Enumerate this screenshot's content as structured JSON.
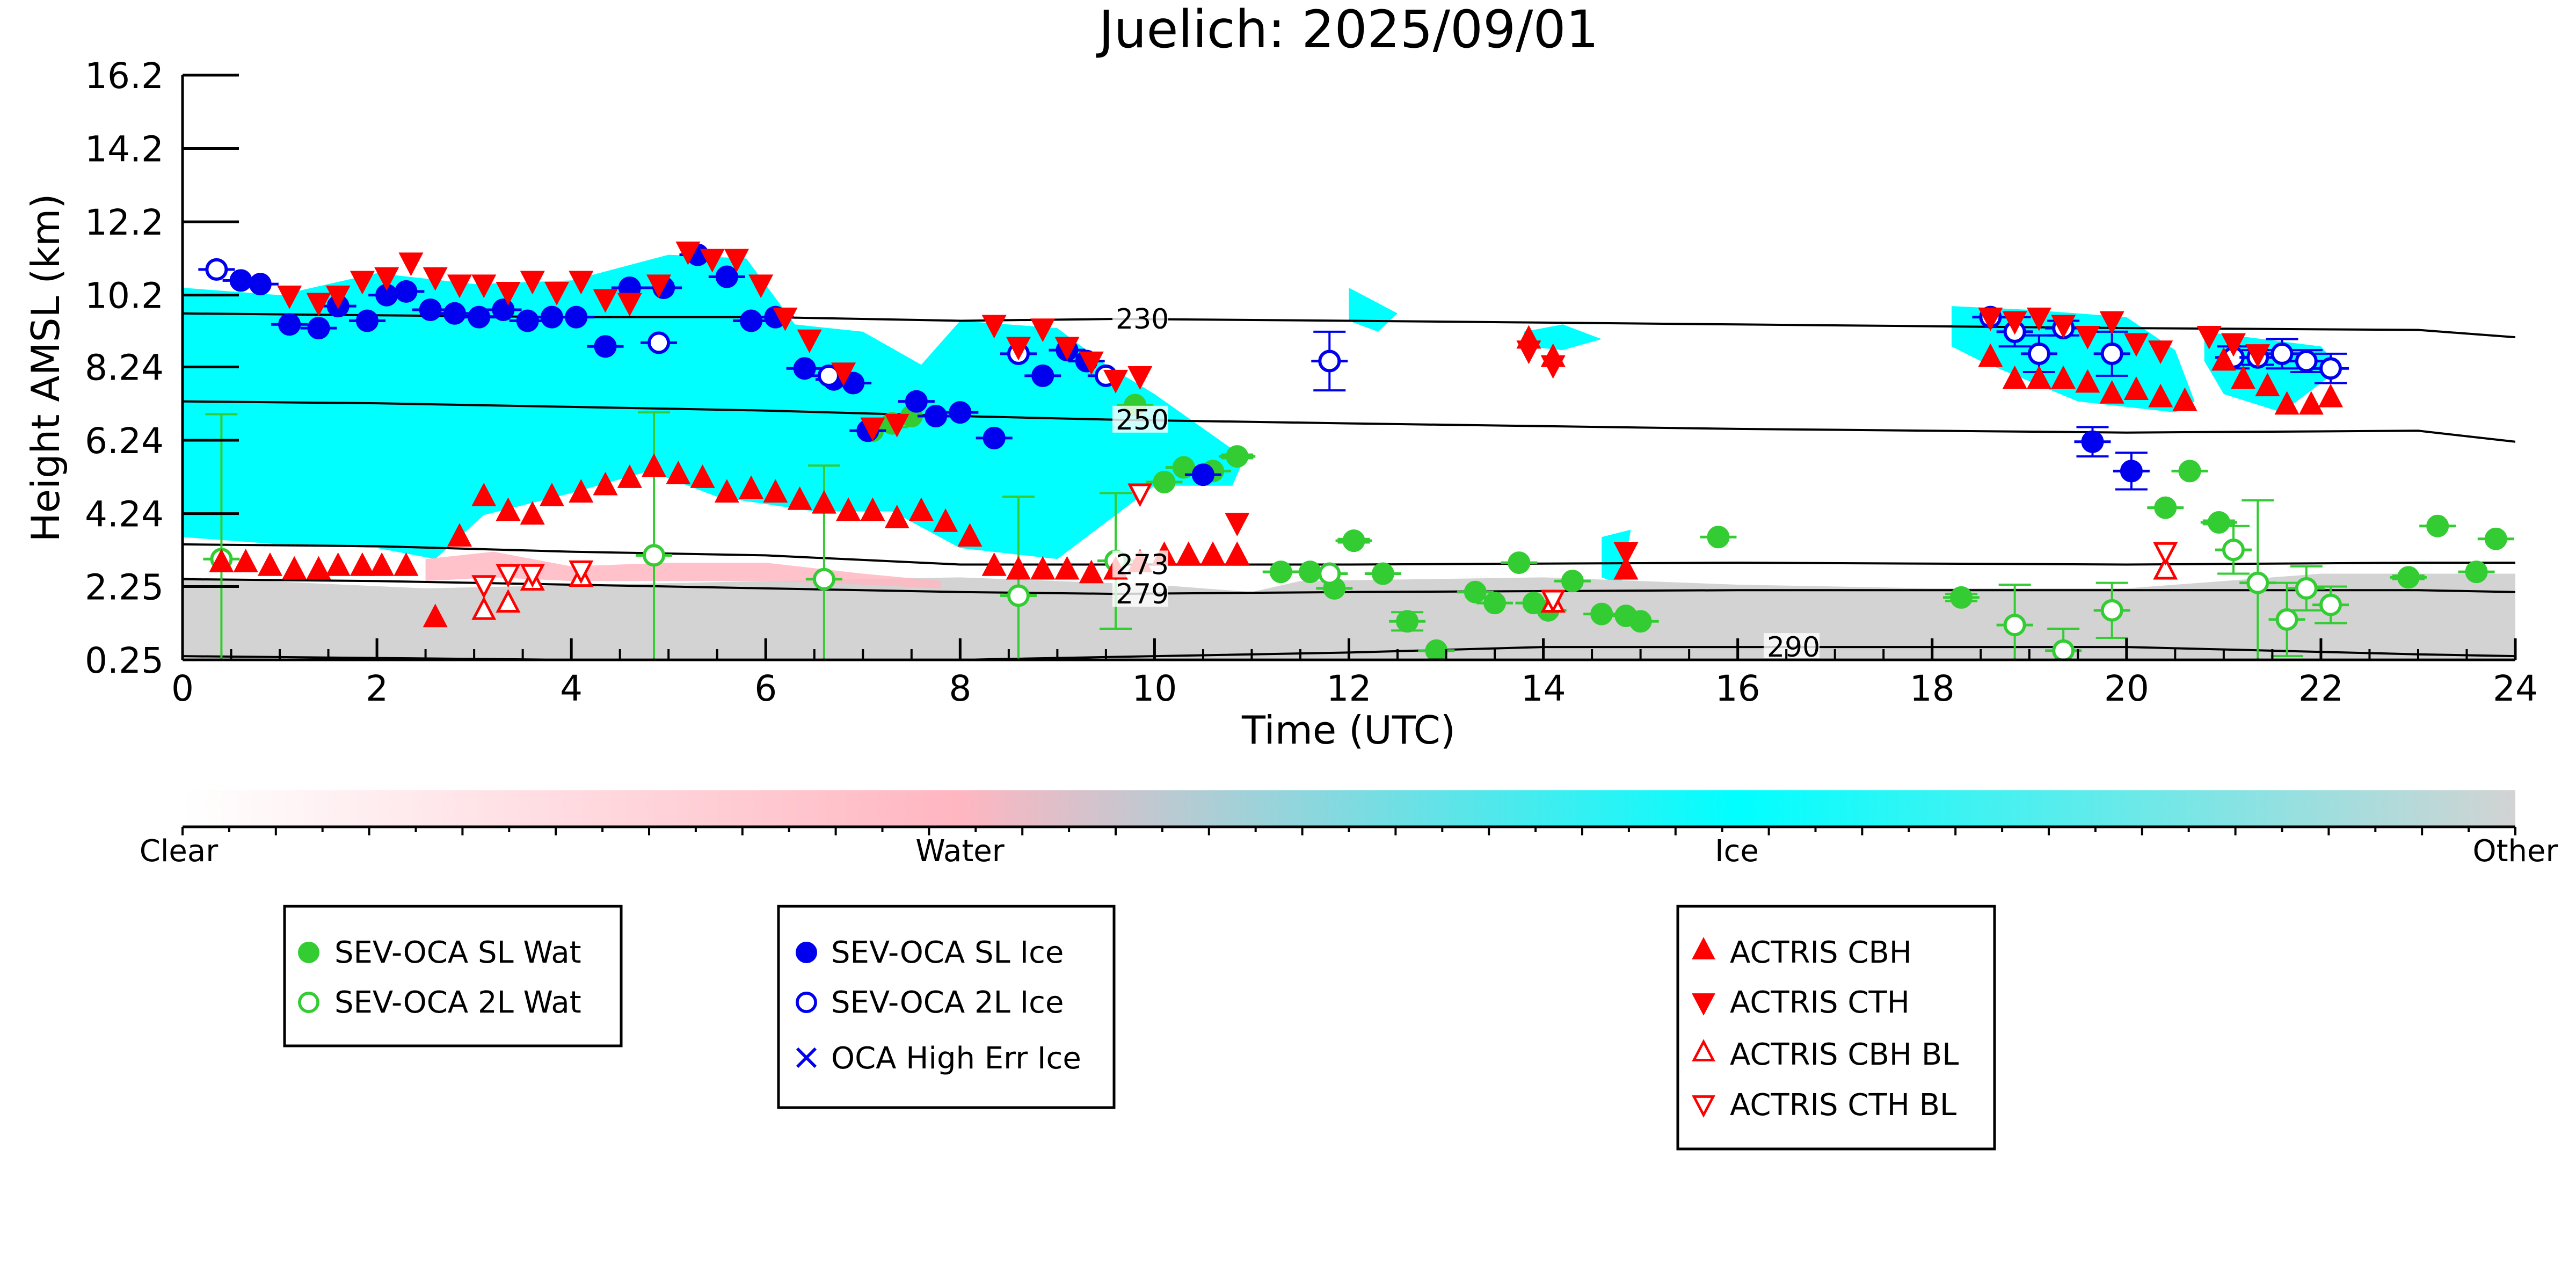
{
  "chart_data": {
    "type": "scatter",
    "title": "Juelich: 2025/09/01",
    "xlabel": "Time (UTC)",
    "ylabel": "Height AMSL (km)",
    "xlim": [
      0,
      24
    ],
    "ylim": [
      0.25,
      16.2
    ],
    "x_ticks": [
      0,
      2,
      4,
      6,
      8,
      10,
      12,
      14,
      16,
      18,
      20,
      22,
      24
    ],
    "y_ticks": [
      0.25,
      2.25,
      4.24,
      6.24,
      8.24,
      10.2,
      12.2,
      14.2,
      16.2
    ],
    "y_tick_labels": [
      "0.25",
      "2.25",
      "4.24",
      "6.24",
      "8.24",
      "10.2",
      "12.2",
      "14.2",
      "16.2"
    ],
    "grid": false,
    "colorbar": {
      "labels": [
        "Clear",
        "Water",
        "Ice",
        "Other"
      ],
      "colors": [
        "#ffffff",
        "#ffb6c1",
        "#00ffff",
        "#d3d3d3"
      ]
    },
    "classification_regions": [
      {
        "class": "Ice",
        "color": "#00ffff",
        "top": [
          [
            0,
            10.4
          ],
          [
            1,
            10.2
          ],
          [
            2,
            10.8
          ],
          [
            3,
            10.5
          ],
          [
            4,
            10.6
          ],
          [
            5,
            11.3
          ],
          [
            5.8,
            11.2
          ],
          [
            6.3,
            9.4
          ],
          [
            7,
            9.2
          ],
          [
            7.6,
            8.3
          ],
          [
            8,
            9.5
          ],
          [
            9,
            9.3
          ],
          [
            9.5,
            8.3
          ],
          [
            10,
            7.5
          ],
          [
            10.8,
            6.0
          ],
          [
            10.9,
            5.6
          ]
        ],
        "bottom": [
          [
            0,
            3.6
          ],
          [
            1,
            3.4
          ],
          [
            2,
            3.3
          ],
          [
            2.6,
            3.0
          ],
          [
            3.1,
            4.2
          ],
          [
            4,
            4.8
          ],
          [
            4.8,
            5.4
          ],
          [
            5.5,
            4.7
          ],
          [
            6.5,
            4.3
          ],
          [
            7.3,
            4.3
          ],
          [
            8,
            3.3
          ],
          [
            9,
            3.0
          ],
          [
            9.5,
            4.0
          ],
          [
            10,
            5.0
          ],
          [
            10.8,
            5.0
          ],
          [
            10.9,
            5.6
          ]
        ]
      },
      {
        "class": "Ice",
        "color": "#00ffff",
        "top": [
          [
            18.2,
            9.9
          ],
          [
            19,
            9.8
          ],
          [
            20,
            9.6
          ],
          [
            20.5,
            8.7
          ],
          [
            20.7,
            7.3
          ],
          [
            20.5,
            7.0
          ],
          [
            19.5,
            7.3
          ],
          [
            18.5,
            8.4
          ],
          [
            18.2,
            8.8
          ]
        ],
        "bottom": []
      },
      {
        "class": "Ice",
        "color": "#00ffff",
        "top": [
          [
            20.8,
            9.2
          ],
          [
            22,
            8.8
          ],
          [
            22.2,
            8.2
          ],
          [
            21.6,
            7.0
          ],
          [
            21,
            7.5
          ],
          [
            20.8,
            8.4
          ]
        ],
        "bottom": []
      },
      {
        "class": "Ice",
        "color": "#00ffff",
        "top": [
          [
            12,
            10.4
          ],
          [
            12.5,
            9.7
          ],
          [
            12.3,
            9.2
          ],
          [
            12.0,
            9.5
          ]
        ],
        "bottom": []
      },
      {
        "class": "Ice",
        "color": "#00ffff",
        "top": [
          [
            13.8,
            9.2
          ],
          [
            14.2,
            9.4
          ],
          [
            14.6,
            9.0
          ],
          [
            14.2,
            8.7
          ],
          [
            13.8,
            8.8
          ]
        ],
        "bottom": []
      },
      {
        "class": "Ice",
        "color": "#00ffff",
        "top": [
          [
            14.6,
            3.6
          ],
          [
            14.9,
            3.8
          ],
          [
            14.8,
            2.3
          ],
          [
            14.6,
            2.5
          ]
        ],
        "bottom": []
      },
      {
        "class": "Other",
        "color": "#d3d3d3",
        "top": [
          [
            0,
            2.5
          ],
          [
            2.5,
            2.2
          ],
          [
            6,
            2.4
          ],
          [
            8,
            2.5
          ],
          [
            10,
            2.3
          ],
          [
            11,
            2.1
          ],
          [
            11.5,
            2.4
          ],
          [
            14,
            2.5
          ],
          [
            16,
            2.3
          ],
          [
            18,
            2.2
          ],
          [
            20,
            2.2
          ],
          [
            22,
            2.6
          ],
          [
            24,
            2.6
          ]
        ],
        "bottom": [
          [
            0,
            0.3
          ],
          [
            24,
            0.3
          ]
        ]
      },
      {
        "class": "Water",
        "color": "#ffb6c1",
        "top": [
          [
            2.5,
            3.0
          ],
          [
            3.2,
            3.2
          ],
          [
            4,
            2.8
          ],
          [
            5,
            2.9
          ],
          [
            6,
            2.9
          ],
          [
            7,
            2.6
          ],
          [
            7.8,
            2.4
          ]
        ],
        "bottom": [
          [
            2.5,
            2.4
          ],
          [
            3.2,
            2.5
          ],
          [
            4,
            2.4
          ],
          [
            5,
            2.4
          ],
          [
            6,
            2.4
          ],
          [
            7,
            2.3
          ],
          [
            7.8,
            2.2
          ]
        ]
      }
    ],
    "isotherms": [
      {
        "label": "230",
        "label_x": 9.6,
        "x": [
          0,
          2,
          4,
          6,
          8,
          9.6,
          12,
          16,
          20,
          23,
          24
        ],
        "y": [
          9.7,
          9.65,
          9.6,
          9.6,
          9.5,
          9.55,
          9.5,
          9.4,
          9.3,
          9.25,
          9.05
        ]
      },
      {
        "label": "250",
        "label_x": 9.6,
        "x": [
          0,
          2,
          4,
          6,
          8,
          9.6,
          12,
          16,
          20,
          23,
          24
        ],
        "y": [
          7.3,
          7.25,
          7.15,
          7.05,
          6.9,
          6.8,
          6.7,
          6.55,
          6.45,
          6.5,
          6.2
        ]
      },
      {
        "label": "273",
        "label_x": 9.6,
        "x": [
          0,
          2,
          4,
          6,
          8,
          9.6,
          12,
          16,
          20,
          23,
          24
        ],
        "y": [
          3.4,
          3.35,
          3.2,
          3.1,
          2.85,
          2.85,
          2.85,
          2.9,
          2.85,
          2.9,
          2.9
        ]
      },
      {
        "label": "279",
        "label_x": 9.6,
        "x": [
          0,
          2,
          4,
          6,
          8,
          9.6,
          12,
          16,
          20,
          23,
          24
        ],
        "y": [
          2.45,
          2.4,
          2.3,
          2.2,
          2.1,
          2.05,
          2.1,
          2.15,
          2.15,
          2.15,
          2.1
        ]
      },
      {
        "label": "290",
        "label_x": 16.3,
        "x": [
          0,
          2,
          4,
          6,
          8,
          10,
          12,
          14,
          16.3,
          20,
          23,
          24
        ],
        "y": [
          0.35,
          0.3,
          0.25,
          0.25,
          0.25,
          0.35,
          0.45,
          0.6,
          0.6,
          0.6,
          0.4,
          0.35
        ]
      }
    ],
    "series": [
      {
        "name": "SEV-OCA SL Wat",
        "marker": "circle",
        "filled": true,
        "color": "#33cc33",
        "x": [
          7.1,
          7.3,
          7.5,
          9.8,
          10.1,
          10.3,
          10.6,
          10.85,
          11.3,
          11.6,
          11.85,
          12.05,
          12.35,
          12.6,
          12.9,
          13.3,
          13.5,
          13.75,
          13.9,
          14.05,
          14.3,
          14.6,
          14.85,
          15.0,
          15.8,
          18.3,
          20.4,
          20.65,
          20.95,
          22.9,
          23.2,
          23.6,
          23.8
        ],
        "y": [
          6.5,
          6.7,
          6.9,
          7.2,
          5.1,
          5.5,
          5.4,
          5.8,
          2.65,
          2.65,
          2.2,
          3.5,
          2.6,
          1.3,
          0.5,
          2.1,
          1.8,
          2.9,
          1.8,
          1.6,
          2.4,
          1.5,
          1.45,
          1.3,
          3.6,
          1.95,
          4.4,
          5.4,
          4.0,
          2.5,
          3.9,
          2.65,
          3.55
        ],
        "err": [
          0,
          0.1,
          0,
          0,
          0,
          0,
          0,
          0.05,
          0,
          0,
          0,
          0.05,
          0,
          0.25,
          0,
          0,
          0,
          0,
          0,
          0,
          0,
          0,
          0,
          0,
          0,
          0.1,
          0,
          0,
          0.05,
          0.05,
          0,
          0,
          0
        ]
      },
      {
        "name": "SEV-OCA 2L Wat",
        "marker": "circle",
        "filled": false,
        "color": "#33cc33",
        "x": [
          0.4,
          4.85,
          6.6,
          8.6,
          9.6,
          11.8,
          18.85,
          19.35,
          19.85,
          21.1,
          21.35,
          21.65,
          21.85,
          22.1
        ],
        "y": [
          3.0,
          3.1,
          2.45,
          2.0,
          2.95,
          2.6,
          1.2,
          0.5,
          1.6,
          3.25,
          2.35,
          1.35,
          2.2,
          1.75
        ],
        "err": [
          3.95,
          3.9,
          3.1,
          2.7,
          1.85,
          0,
          1.1,
          0.6,
          0.75,
          0.65,
          2.25,
          1.0,
          0.6,
          0.5
        ]
      },
      {
        "name": "SEV-OCA SL Ice",
        "marker": "circle",
        "filled": true,
        "color": "#0000ee",
        "x": [
          0.6,
          0.8,
          1.1,
          1.4,
          1.6,
          1.9,
          2.1,
          2.3,
          2.55,
          2.8,
          3.05,
          3.3,
          3.55,
          3.8,
          4.05,
          4.35,
          4.6,
          4.95,
          5.3,
          5.6,
          5.85,
          6.1,
          6.4,
          6.7,
          6.9,
          7.05,
          7.55,
          7.75,
          8.0,
          8.35,
          8.85,
          9.1,
          9.3,
          10.5,
          19.65,
          20.05
        ],
        "y": [
          10.6,
          10.5,
          9.4,
          9.3,
          9.9,
          9.5,
          10.2,
          10.3,
          9.8,
          9.7,
          9.6,
          9.8,
          9.5,
          9.6,
          9.6,
          8.8,
          10.4,
          10.4,
          11.3,
          10.7,
          9.5,
          9.6,
          8.2,
          7.9,
          7.8,
          6.5,
          7.3,
          6.9,
          7.0,
          6.3,
          8.0,
          8.7,
          8.4,
          5.3,
          6.2,
          5.4
        ],
        "err": [
          0,
          0,
          0,
          0,
          0,
          0,
          0,
          0,
          0,
          0,
          0,
          0,
          0,
          0,
          0,
          0,
          0,
          0,
          0,
          0,
          0,
          0,
          0,
          0,
          0,
          0,
          0,
          0,
          0,
          0,
          0,
          0,
          0,
          0,
          0.4,
          0.5
        ]
      },
      {
        "name": "SEV-OCA 2L Ice",
        "marker": "circle",
        "filled": false,
        "color": "#0000ee",
        "x": [
          0.35,
          4.9,
          6.65,
          8.6,
          9.5,
          11.8,
          18.6,
          18.85,
          19.1,
          19.35,
          19.85,
          21.1,
          21.35,
          21.6,
          21.85,
          22.1
        ],
        "y": [
          10.9,
          8.9,
          8.0,
          8.6,
          8.0,
          8.4,
          9.6,
          9.2,
          8.6,
          9.3,
          8.6,
          8.5,
          8.5,
          8.6,
          8.4,
          8.2
        ],
        "err": [
          0,
          0,
          0,
          0,
          0,
          0.8,
          0,
          0.4,
          0.5,
          0.2,
          0.6,
          0.3,
          0.2,
          0.4,
          0.3,
          0.4
        ]
      },
      {
        "name": "OCA High Err Ice",
        "marker": "x",
        "filled": false,
        "color": "#0000ee",
        "x": [],
        "y": []
      },
      {
        "name": "ACTRIS CBH",
        "marker": "triangle-up",
        "filled": true,
        "color": "#ff0000",
        "x": [
          0.4,
          0.65,
          0.9,
          1.15,
          1.4,
          1.6,
          1.85,
          2.05,
          2.3,
          2.6,
          2.85,
          3.1,
          3.35,
          3.6,
          3.8,
          4.1,
          4.35,
          4.6,
          4.85,
          5.1,
          5.35,
          5.6,
          5.85,
          6.1,
          6.35,
          6.6,
          6.85,
          7.1,
          7.35,
          7.6,
          7.85,
          8.1,
          8.35,
          8.6,
          8.85,
          9.1,
          9.35,
          9.6,
          9.85,
          10.1,
          10.35,
          10.6,
          10.85,
          13.85,
          14.1,
          14.85,
          18.6,
          18.85,
          19.1,
          19.35,
          19.6,
          19.85,
          20.1,
          20.35,
          20.6,
          21.0,
          21.2,
          21.45,
          21.65,
          21.9,
          22.1
        ],
        "y": [
          2.9,
          2.9,
          2.8,
          2.7,
          2.7,
          2.8,
          2.8,
          2.8,
          2.8,
          1.4,
          3.6,
          4.7,
          4.3,
          4.2,
          4.7,
          4.8,
          5.0,
          5.2,
          5.5,
          5.3,
          5.2,
          4.8,
          4.9,
          4.8,
          4.6,
          4.5,
          4.3,
          4.3,
          4.1,
          4.3,
          4.0,
          3.6,
          2.8,
          2.7,
          2.7,
          2.7,
          2.6,
          2.7,
          2.9,
          3.1,
          3.1,
          3.1,
          3.1,
          9.0,
          8.5,
          2.7,
          8.5,
          7.9,
          7.9,
          7.9,
          7.8,
          7.5,
          7.6,
          7.4,
          7.3,
          8.4,
          7.9,
          7.7,
          7.2,
          7.2,
          7.4
        ]
      },
      {
        "name": "ACTRIS CTH",
        "marker": "triangle-down",
        "filled": true,
        "color": "#ff0000",
        "x": [
          1.1,
          1.4,
          1.6,
          1.85,
          2.1,
          2.35,
          2.6,
          2.85,
          3.1,
          3.35,
          3.6,
          3.85,
          4.1,
          4.35,
          4.6,
          4.9,
          5.2,
          5.45,
          5.7,
          5.95,
          6.2,
          6.45,
          6.8,
          7.1,
          7.35,
          8.35,
          8.6,
          8.85,
          9.1,
          9.35,
          9.6,
          9.85,
          10.85,
          13.85,
          14.1,
          14.85,
          18.6,
          18.85,
          19.1,
          19.35,
          19.6,
          19.85,
          20.1,
          20.35,
          20.85,
          21.1,
          21.35
        ],
        "y": [
          10.2,
          10.0,
          10.2,
          10.6,
          10.7,
          11.1,
          10.7,
          10.5,
          10.5,
          10.3,
          10.6,
          10.3,
          10.6,
          10.1,
          10.0,
          10.5,
          11.4,
          11.2,
          11.2,
          10.5,
          9.6,
          9.0,
          8.1,
          6.6,
          6.7,
          9.4,
          8.8,
          9.3,
          8.8,
          8.4,
          7.9,
          8.0,
          4.0,
          8.7,
          8.3,
          3.2,
          9.6,
          9.5,
          9.6,
          9.4,
          9.1,
          9.5,
          8.9,
          8.7,
          9.1,
          8.9,
          8.6
        ]
      },
      {
        "name": "ACTRIS CBH BL",
        "marker": "triangle-up",
        "filled": false,
        "color": "#ff0000",
        "x": [
          3.1,
          3.35,
          3.6,
          4.1,
          14.1,
          20.4
        ],
        "y": [
          1.6,
          1.8,
          2.4,
          2.5,
          1.8,
          2.7
        ]
      },
      {
        "name": "ACTRIS CTH BL",
        "marker": "triangle-down",
        "filled": false,
        "color": "#ff0000",
        "x": [
          3.1,
          3.35,
          3.6,
          4.1,
          9.85,
          14.1,
          20.4
        ],
        "y": [
          2.3,
          2.6,
          2.6,
          2.7,
          4.8,
          1.9,
          3.2
        ]
      }
    ]
  }
}
